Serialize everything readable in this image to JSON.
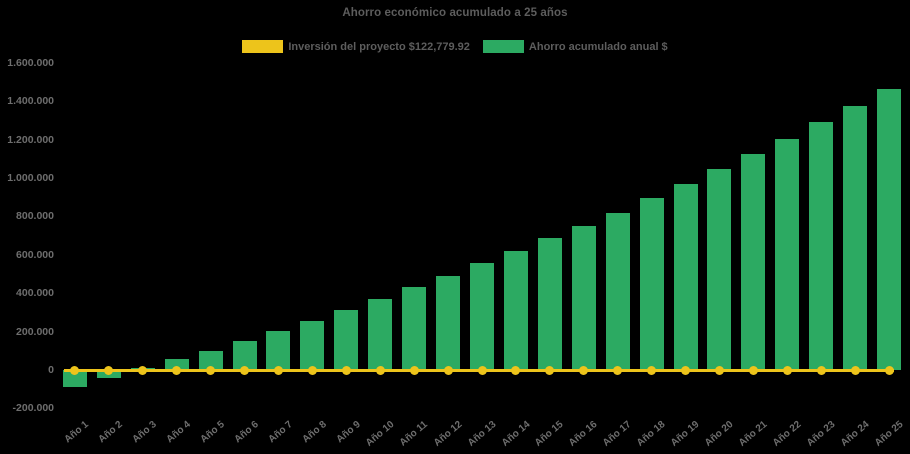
{
  "page": {
    "background": "#000000"
  },
  "chart_data": {
    "type": "bar",
    "title": "Ahorro económico acumulado a 25 años",
    "categories": [
      "Año 1",
      "Año 2",
      "Año 3",
      "Año 4",
      "Año 5",
      "Año 6",
      "Año 7",
      "Año 8",
      "Año 9",
      "Año 10",
      "Año 11",
      "Año 12",
      "Año 13",
      "Año 14",
      "Año 15",
      "Año 16",
      "Año 17",
      "Año 18",
      "Año 19",
      "Año 20",
      "Año 21",
      "Año 22",
      "Año 23",
      "Año 24",
      "Año 25"
    ],
    "series": [
      {
        "name": "Inversión del proyecto $122,779.92",
        "type": "line",
        "color": "#edc41b",
        "values": [
          0,
          0,
          0,
          0,
          0,
          0,
          0,
          0,
          0,
          0,
          0,
          0,
          0,
          0,
          0,
          0,
          0,
          0,
          0,
          0,
          0,
          0,
          0,
          0,
          0
        ]
      },
      {
        "name": "Ahorro acumulado anual $",
        "type": "bar",
        "color": "#2caa62",
        "values": [
          -90000,
          -40000,
          12000,
          55000,
          100000,
          150000,
          205000,
          255000,
          310000,
          370000,
          430000,
          490000,
          555000,
          620000,
          685000,
          750000,
          820000,
          895000,
          970000,
          1045000,
          1125000,
          1205000,
          1290000,
          1375000,
          1465000
        ]
      }
    ],
    "ylim": [
      -200000,
      1600000
    ],
    "ytick_step": 200000,
    "yticks": [
      {
        "value": 1600000,
        "label": "1.600.000"
      },
      {
        "value": 1400000,
        "label": "1.400.000"
      },
      {
        "value": 1200000,
        "label": "1.200.000"
      },
      {
        "value": 1000000,
        "label": "1.000.000"
      },
      {
        "value": 800000,
        "label": "800.000"
      },
      {
        "value": 600000,
        "label": "600.000"
      },
      {
        "value": 400000,
        "label": "400.000"
      },
      {
        "value": 200000,
        "label": "200.000"
      },
      {
        "value": 0,
        "label": "0"
      },
      {
        "value": -200000,
        "label": "-200.000"
      }
    ],
    "grid": false,
    "legend_position": "top",
    "xlabel": "",
    "ylabel": "",
    "text_colors": {
      "title": "#5d5d5d",
      "axis_labels": "#6e6e6e"
    }
  }
}
